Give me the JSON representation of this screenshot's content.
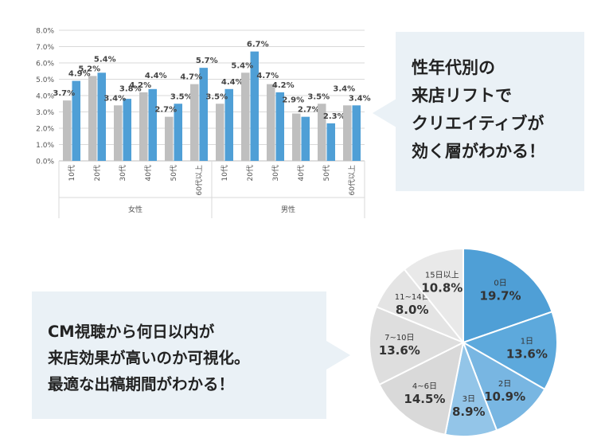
{
  "colors": {
    "series_a": "#bfbfbf",
    "series_b": "#4f9fd6",
    "pie": [
      "#4f9fd6",
      "#5da9dc",
      "#78b6e2",
      "#93c5e8",
      "#d9d9d9",
      "#dedede",
      "#e4e4e4",
      "#e9e9e9"
    ],
    "callout_bg": "#eaf1f6"
  },
  "callouts": {
    "top": [
      "性年代別の",
      "来店リフトで",
      "クリエイティブが",
      "効く層がわかる！"
    ],
    "bottom": [
      "CM視聴から何日以内が",
      "来店効果が高いのか可視化。",
      "最適な出稿期間がわかる！"
    ]
  },
  "chart_data": [
    {
      "type": "bar",
      "title": "",
      "xlabel": "",
      "ylabel": "",
      "ylim": [
        0,
        8
      ],
      "y_ticks": [
        "0.0%",
        "1.0%",
        "2.0%",
        "3.0%",
        "4.0%",
        "5.0%",
        "6.0%",
        "7.0%",
        "8.0%"
      ],
      "grid": true,
      "groups": [
        {
          "label": "女性",
          "categories": [
            "10代",
            "20代",
            "30代",
            "40代",
            "50代",
            "60代以上"
          ]
        },
        {
          "label": "男性",
          "categories": [
            "10代",
            "20代",
            "30代",
            "40代",
            "50代",
            "60代以上"
          ]
        }
      ],
      "categories": [
        "10代",
        "20代",
        "30代",
        "40代",
        "50代",
        "60代以上",
        "10代",
        "20代",
        "30代",
        "40代",
        "50代",
        "60代以上"
      ],
      "series": [
        {
          "values": [
            3.7,
            5.2,
            3.4,
            4.2,
            2.7,
            4.7,
            3.5,
            5.4,
            4.7,
            2.9,
            3.5,
            3.4
          ],
          "labels": [
            "3.7%",
            "5.2%",
            "3.4%",
            "4.2%",
            "2.7%",
            "4.7%",
            "3.5%",
            "5.4%",
            "4.7%",
            "2.9%",
            "3.5%",
            "3.4%"
          ]
        },
        {
          "values": [
            4.9,
            5.4,
            3.8,
            4.4,
            3.5,
            5.7,
            4.4,
            6.7,
            4.2,
            2.7,
            2.3,
            3.4
          ],
          "labels": [
            "4.9%",
            "5.4%",
            "3.8%",
            "4.4%",
            "3.5%",
            "5.7%",
            "4.4%",
            "6.7%",
            "4.2%",
            "2.7%",
            "2.3%",
            "3.4%"
          ]
        }
      ]
    },
    {
      "type": "pie",
      "title": "",
      "slices": [
        {
          "label": "0日",
          "value": 19.7,
          "pct": "19.7%"
        },
        {
          "label": "1日",
          "value": 13.6,
          "pct": "13.6%"
        },
        {
          "label": "2日",
          "value": 10.9,
          "pct": "10.9%"
        },
        {
          "label": "3日",
          "value": 8.9,
          "pct": "8.9%"
        },
        {
          "label": "4~6日",
          "value": 14.5,
          "pct": "14.5%"
        },
        {
          "label": "7~10日",
          "value": 13.6,
          "pct": "13.6%"
        },
        {
          "label": "11~14日",
          "value": 8.0,
          "pct": "8.0%"
        },
        {
          "label": "15日以上",
          "value": 10.8,
          "pct": "10.8%"
        }
      ]
    }
  ]
}
